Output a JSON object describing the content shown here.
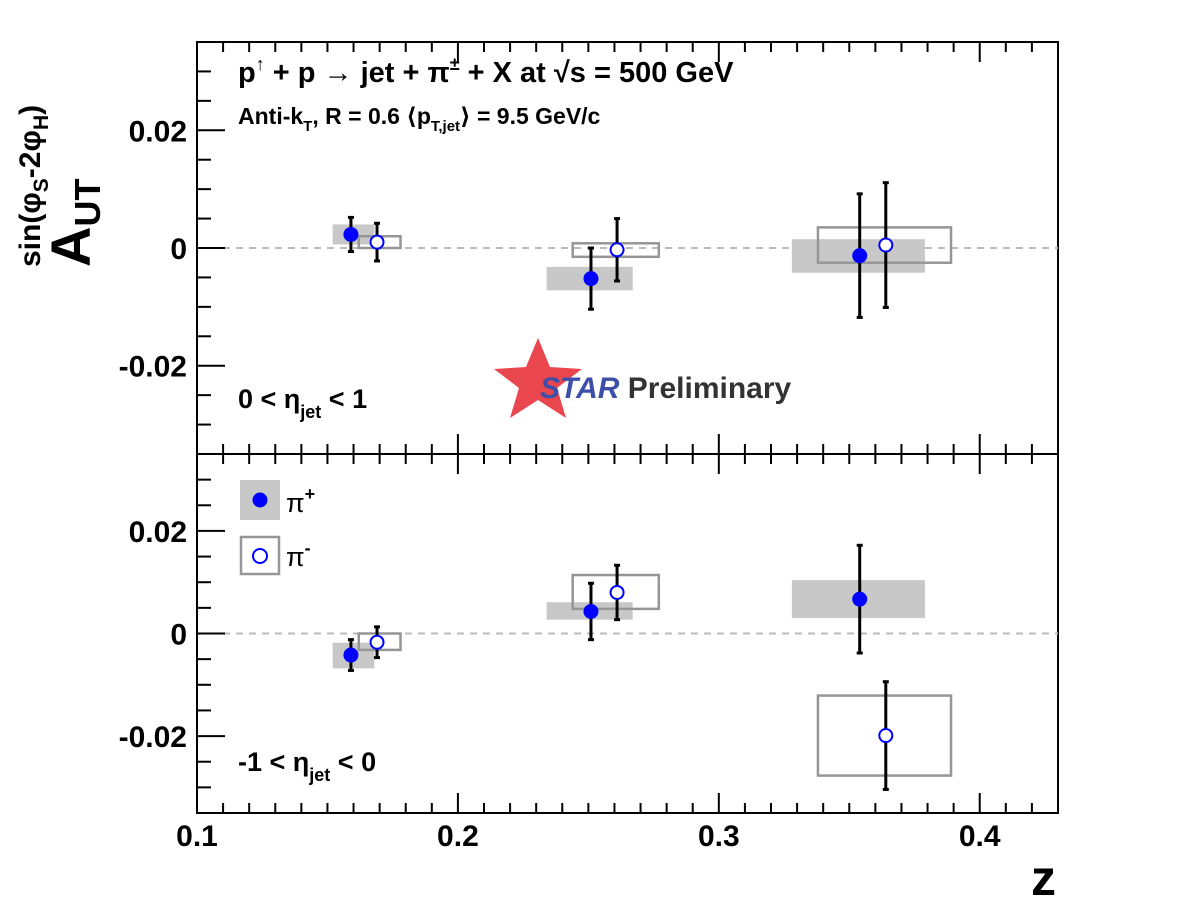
{
  "chart_data": {
    "type": "scatter",
    "title_parts": {
      "reaction": [
        "p",
        "↑",
        " + p → jet + π",
        "±",
        " + X at √s = 500 GeV"
      ],
      "jet_info": [
        "Anti-k",
        "T",
        ", R = 0.6  ⟨p",
        "T,jet",
        "⟩ = 9.5 GeV/c"
      ]
    },
    "xlabel": "z",
    "ylabel_parts": [
      "A",
      "UT",
      "sin(φ",
      "S",
      "-2φ",
      "H",
      ")"
    ],
    "xlim": [
      0.1,
      0.43
    ],
    "x_ticks": [
      0.1,
      0.2,
      0.3,
      0.4
    ],
    "x_tick_labels": [
      "0.1",
      "0.2",
      "0.3",
      "0.4"
    ],
    "watermark": {
      "star": "STAR",
      "rest": " Preliminary"
    },
    "legend": {
      "placement": "top-left (lower panel)",
      "entries": [
        {
          "symbol": "filled",
          "name_parts": [
            "π",
            "+"
          ]
        },
        {
          "symbol": "open",
          "name_parts": [
            "π",
            "-"
          ]
        }
      ]
    },
    "colors": {
      "marker": "#0000ff",
      "sys_fill": "#c8c8c8",
      "sys_line": "#969696",
      "zero_line": "#bbbbbb",
      "error_bar": "#000000"
    },
    "panels": [
      {
        "id": "upper",
        "label_parts": [
          "0 < η",
          "jet",
          " < 1"
        ],
        "ylim": [
          -0.035,
          0.035
        ],
        "y_ticks": [
          -0.02,
          0,
          0.02
        ],
        "y_tick_labels": [
          "-0.02",
          "0",
          "0.02"
        ],
        "series": [
          {
            "name": "π+",
            "filled": true,
            "points": [
              {
                "x": 0.159,
                "y": 0.0023,
                "stat": 0.0029,
                "sys_y": [
                  0.0006,
                  0.004
                ],
                "sys_x": [
                  0.152,
                  0.168
                ]
              },
              {
                "x": 0.251,
                "y": -0.0052,
                "stat": 0.0052,
                "sys_y": [
                  -0.0072,
                  -0.0032
                ],
                "sys_x": [
                  0.234,
                  0.267
                ]
              },
              {
                "x": 0.354,
                "y": -0.0013,
                "stat": 0.0105,
                "sys_y": [
                  -0.0042,
                  0.0015
                ],
                "sys_x": [
                  0.328,
                  0.379
                ]
              }
            ]
          },
          {
            "name": "π-",
            "filled": false,
            "points": [
              {
                "x": 0.169,
                "y": 0.001,
                "stat": 0.0032,
                "sys_y": [
                  0.0,
                  0.002
                ],
                "sys_x": [
                  0.162,
                  0.178
                ]
              },
              {
                "x": 0.261,
                "y": -0.0003,
                "stat": 0.0053,
                "sys_y": [
                  -0.0015,
                  0.0008
                ],
                "sys_x": [
                  0.244,
                  0.277
                ]
              },
              {
                "x": 0.364,
                "y": 0.0005,
                "stat": 0.0106,
                "sys_y": [
                  -0.0025,
                  0.0035
                ],
                "sys_x": [
                  0.338,
                  0.389
                ]
              }
            ]
          }
        ]
      },
      {
        "id": "lower",
        "label_parts": [
          "-1 < η",
          "jet",
          " < 0"
        ],
        "ylim": [
          -0.035,
          0.035
        ],
        "y_ticks": [
          -0.02,
          0,
          0.02
        ],
        "y_tick_labels": [
          "-0.02",
          "0",
          "0.02"
        ],
        "series": [
          {
            "name": "π+",
            "filled": true,
            "points": [
              {
                "x": 0.159,
                "y": -0.0042,
                "stat": 0.003,
                "sys_y": [
                  -0.0068,
                  -0.0018
                ],
                "sys_x": [
                  0.152,
                  0.168
                ]
              },
              {
                "x": 0.251,
                "y": 0.0043,
                "stat": 0.0055,
                "sys_y": [
                  0.0027,
                  0.0061
                ],
                "sys_x": [
                  0.234,
                  0.267
                ]
              },
              {
                "x": 0.354,
                "y": 0.0067,
                "stat": 0.0105,
                "sys_y": [
                  0.003,
                  0.0104
                ],
                "sys_x": [
                  0.328,
                  0.379
                ]
              }
            ]
          },
          {
            "name": "π-",
            "filled": false,
            "points": [
              {
                "x": 0.169,
                "y": -0.0017,
                "stat": 0.003,
                "sys_y": [
                  -0.0032,
                  0.0
                ],
                "sys_x": [
                  0.162,
                  0.178
                ]
              },
              {
                "x": 0.261,
                "y": 0.008,
                "stat": 0.0053,
                "sys_y": [
                  0.0048,
                  0.0114
                ],
                "sys_x": [
                  0.244,
                  0.277
                ]
              },
              {
                "x": 0.364,
                "y": -0.0199,
                "stat": 0.0105,
                "sys_y": [
                  -0.0277,
                  -0.0121
                ],
                "sys_x": [
                  0.338,
                  0.389
                ]
              }
            ]
          }
        ]
      }
    ]
  }
}
